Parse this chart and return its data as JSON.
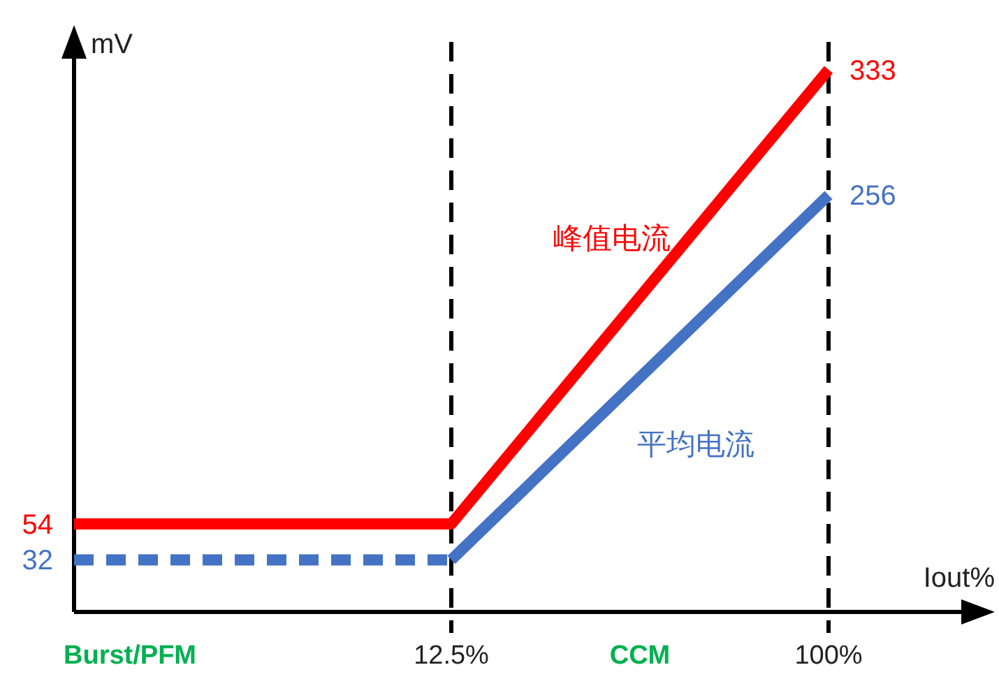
{
  "chart_data": {
    "type": "line",
    "xlabel": "Iout%",
    "ylabel": "mV",
    "categories": [
      null,
      "12.5%",
      "100%"
    ],
    "ylim": [
      0,
      350
    ],
    "tick_labels": "x",
    "series": [
      {
        "name": "峰值电流",
        "color": "#ff0000",
        "values": [
          54,
          54,
          333
        ],
        "value_labels": [
          "54",
          null,
          "333"
        ],
        "line_style": "solid"
      },
      {
        "color": "#4472c4",
        "values": [
          32,
          32,
          null
        ],
        "value_labels": [
          "32",
          null,
          null
        ],
        "line_style": "dashed"
      },
      {
        "name": "平均电流",
        "color": "#4472c4",
        "values": [
          null,
          32,
          256
        ],
        "value_labels": [
          null,
          null,
          "256"
        ],
        "line_style": "solid"
      }
    ],
    "ref_lines": [
      {
        "axis": "x",
        "value": "12.5%",
        "line_style": "dashed",
        "color": "#000000"
      },
      {
        "axis": "x",
        "value": "100%",
        "line_style": "dashed",
        "color": "#000000"
      }
    ],
    "annotations": [
      "Burst/PFM",
      "CCM"
    ],
    "grid": false,
    "marker": "none"
  }
}
